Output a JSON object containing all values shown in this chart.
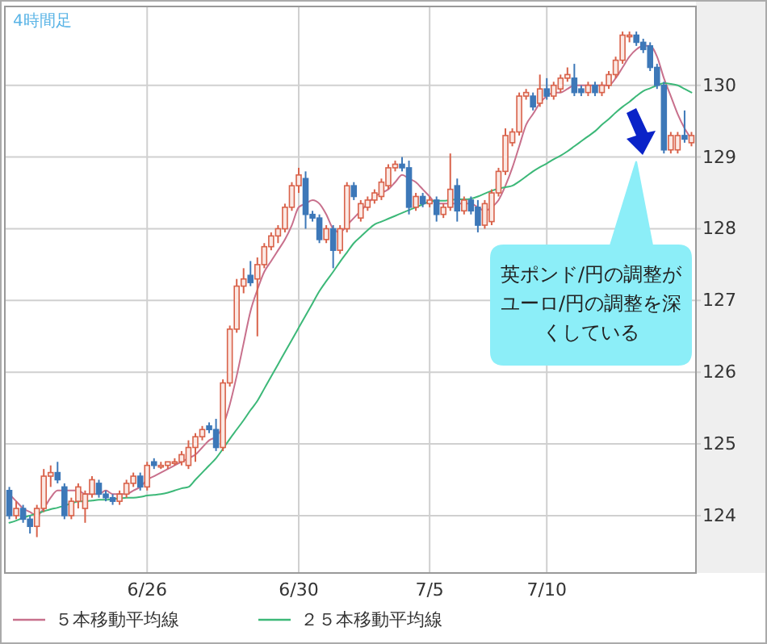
{
  "chart_data": {
    "type": "candlestick",
    "annotations": [
      "4時間足",
      "英ポンド/円の調整がユーロ/円の調整を深くしている"
    ],
    "categories": [
      null,
      null,
      null,
      null,
      null,
      null,
      null,
      null,
      null,
      null,
      null,
      null,
      null,
      null,
      null,
      null,
      null,
      null,
      null,
      null,
      "6/26",
      null,
      null,
      null,
      null,
      null,
      null,
      null,
      null,
      null,
      null,
      null,
      null,
      null,
      null,
      null,
      null,
      null,
      null,
      null,
      null,
      null,
      "6/30",
      null,
      null,
      null,
      null,
      null,
      null,
      null,
      null,
      null,
      null,
      null,
      null,
      null,
      null,
      null,
      null,
      null,
      null,
      "7/5",
      null,
      null,
      null,
      null,
      null,
      null,
      null,
      null,
      null,
      null,
      null,
      null,
      null,
      null,
      null,
      null,
      "7/10",
      null,
      null,
      null,
      null,
      null,
      null,
      null,
      null,
      null,
      null,
      null,
      null,
      null,
      null,
      null,
      null,
      null,
      null,
      null,
      null,
      null
    ],
    "ohlc": [
      [
        124.35,
        124.4,
        123.95,
        124.0
      ],
      [
        124.0,
        124.2,
        123.95,
        124.1
      ],
      [
        124.1,
        124.15,
        123.9,
        123.95
      ],
      [
        123.95,
        124.0,
        123.75,
        123.85
      ],
      [
        123.85,
        124.15,
        123.7,
        124.1
      ],
      [
        124.1,
        124.65,
        124.05,
        124.55
      ],
      [
        124.55,
        124.7,
        124.4,
        124.6
      ],
      [
        124.6,
        124.75,
        124.45,
        124.5
      ],
      [
        124.4,
        124.45,
        123.95,
        124.0
      ],
      [
        124.0,
        124.25,
        123.95,
        124.2
      ],
      [
        124.2,
        124.45,
        124.1,
        124.4
      ],
      [
        124.1,
        124.35,
        123.9,
        124.3
      ],
      [
        124.3,
        124.55,
        124.25,
        124.5
      ],
      [
        124.45,
        124.5,
        124.25,
        124.3
      ],
      [
        124.3,
        124.35,
        124.2,
        124.25
      ],
      [
        124.25,
        124.3,
        124.15,
        124.2
      ],
      [
        124.2,
        124.35,
        124.15,
        124.3
      ],
      [
        124.3,
        124.5,
        124.25,
        124.45
      ],
      [
        124.45,
        124.6,
        124.4,
        124.55
      ],
      [
        124.55,
        124.6,
        124.35,
        124.4
      ],
      [
        124.4,
        124.75,
        124.35,
        124.7
      ],
      [
        124.75,
        124.8,
        124.65,
        124.7
      ],
      [
        124.7,
        124.75,
        124.65,
        124.7
      ],
      [
        124.7,
        124.75,
        124.65,
        124.75
      ],
      [
        124.75,
        124.8,
        124.7,
        124.75
      ],
      [
        124.75,
        124.9,
        124.7,
        124.85
      ],
      [
        124.7,
        125.05,
        124.65,
        124.95
      ],
      [
        124.95,
        125.15,
        124.75,
        125.1
      ],
      [
        125.1,
        125.25,
        125.05,
        125.2
      ],
      [
        125.25,
        125.3,
        125.15,
        125.2
      ],
      [
        125.2,
        125.35,
        124.9,
        124.95
      ],
      [
        124.95,
        125.9,
        124.9,
        125.85
      ],
      [
        125.85,
        126.65,
        125.8,
        126.6
      ],
      [
        126.6,
        127.3,
        126.55,
        127.2
      ],
      [
        127.2,
        127.45,
        127.1,
        127.3
      ],
      [
        127.35,
        127.55,
        127.2,
        127.25
      ],
      [
        127.3,
        127.6,
        126.5,
        127.5
      ],
      [
        127.5,
        127.8,
        127.45,
        127.75
      ],
      [
        127.75,
        127.95,
        127.7,
        127.9
      ],
      [
        127.9,
        128.05,
        127.8,
        128.0
      ],
      [
        128.0,
        128.35,
        127.95,
        128.3
      ],
      [
        128.3,
        128.65,
        128.25,
        128.6
      ],
      [
        128.6,
        128.85,
        128.5,
        128.75
      ],
      [
        128.7,
        128.8,
        128.0,
        128.2
      ],
      [
        128.2,
        128.25,
        128.1,
        128.15
      ],
      [
        128.15,
        128.2,
        127.8,
        127.85
      ],
      [
        127.85,
        128.05,
        127.8,
        128.0
      ],
      [
        128.0,
        128.05,
        127.45,
        127.7
      ],
      [
        127.7,
        128.05,
        127.65,
        128.0
      ],
      [
        128.0,
        128.65,
        127.95,
        128.6
      ],
      [
        128.6,
        128.65,
        128.4,
        128.45
      ],
      [
        128.15,
        128.4,
        128.1,
        128.35
      ],
      [
        128.3,
        128.45,
        128.25,
        128.4
      ],
      [
        128.4,
        128.55,
        128.35,
        128.5
      ],
      [
        128.45,
        128.7,
        128.4,
        128.65
      ],
      [
        128.6,
        128.9,
        128.55,
        128.85
      ],
      [
        128.85,
        128.95,
        128.8,
        128.9
      ],
      [
        128.9,
        129.0,
        128.8,
        128.85
      ],
      [
        128.85,
        128.95,
        128.2,
        128.3
      ],
      [
        128.3,
        128.5,
        128.25,
        128.45
      ],
      [
        128.45,
        128.5,
        128.3,
        128.35
      ],
      [
        128.35,
        128.45,
        128.3,
        128.4
      ],
      [
        128.4,
        128.45,
        128.1,
        128.2
      ],
      [
        128.2,
        128.35,
        128.15,
        128.3
      ],
      [
        128.3,
        129.05,
        128.25,
        128.55
      ],
      [
        128.6,
        128.7,
        128.1,
        128.25
      ],
      [
        128.25,
        128.45,
        128.2,
        128.4
      ],
      [
        128.4,
        128.45,
        128.2,
        128.25
      ],
      [
        128.3,
        128.4,
        127.95,
        128.05
      ],
      [
        128.05,
        128.4,
        128.0,
        128.35
      ],
      [
        128.1,
        128.55,
        128.05,
        128.5
      ],
      [
        128.5,
        128.85,
        128.45,
        128.8
      ],
      [
        128.8,
        129.4,
        128.75,
        129.3
      ],
      [
        129.2,
        129.4,
        129.15,
        129.35
      ],
      [
        129.35,
        129.9,
        129.3,
        129.85
      ],
      [
        129.85,
        129.95,
        129.8,
        129.9
      ],
      [
        129.85,
        129.9,
        129.65,
        129.7
      ],
      [
        129.75,
        130.15,
        129.7,
        129.95
      ],
      [
        129.95,
        130.1,
        129.8,
        129.85
      ],
      [
        129.85,
        130.05,
        129.8,
        130.0
      ],
      [
        129.95,
        130.15,
        129.9,
        130.1
      ],
      [
        130.1,
        130.25,
        130.05,
        130.15
      ],
      [
        130.1,
        130.3,
        129.85,
        129.9
      ],
      [
        129.95,
        130.0,
        129.85,
        129.9
      ],
      [
        129.9,
        130.05,
        129.85,
        130.0
      ],
      [
        130.0,
        130.05,
        129.85,
        129.9
      ],
      [
        129.9,
        130.05,
        129.85,
        130.0
      ],
      [
        130.0,
        130.2,
        129.95,
        130.15
      ],
      [
        130.15,
        130.4,
        130.1,
        130.35
      ],
      [
        130.35,
        130.75,
        130.3,
        130.7
      ],
      [
        130.7,
        130.75,
        130.6,
        130.7
      ],
      [
        130.7,
        130.75,
        130.55,
        130.6
      ],
      [
        130.6,
        130.65,
        130.45,
        130.5
      ],
      [
        130.55,
        130.6,
        130.2,
        130.25
      ],
      [
        130.25,
        130.3,
        129.95,
        130.0
      ],
      [
        130.0,
        130.05,
        129.05,
        129.1
      ],
      [
        129.1,
        129.35,
        129.05,
        129.3
      ],
      [
        129.1,
        129.35,
        129.05,
        129.3
      ],
      [
        129.3,
        129.65,
        129.2,
        129.25
      ],
      [
        129.2,
        129.35,
        129.15,
        129.3
      ]
    ],
    "series": [
      {
        "name": "５本移動平均線",
        "type": "line",
        "color": "#c8708c",
        "values": [
          124.3,
          124.2,
          124.1,
          124.05,
          124.0,
          124.1,
          124.25,
          124.35,
          124.35,
          124.35,
          124.35,
          124.3,
          124.3,
          124.3,
          124.35,
          124.3,
          124.3,
          124.3,
          124.35,
          124.4,
          124.5,
          124.55,
          124.6,
          124.65,
          124.7,
          124.75,
          124.8,
          124.85,
          124.95,
          125.05,
          125.1,
          125.25,
          125.55,
          125.95,
          126.4,
          126.85,
          127.15,
          127.4,
          127.55,
          127.7,
          127.85,
          128.05,
          128.3,
          128.35,
          128.4,
          128.35,
          128.2,
          128.0,
          127.95,
          128.05,
          128.15,
          128.25,
          128.35,
          128.45,
          128.5,
          128.55,
          128.65,
          128.75,
          128.7,
          128.65,
          128.55,
          128.45,
          128.35,
          128.35,
          128.35,
          128.35,
          128.35,
          128.35,
          128.3,
          128.25,
          128.3,
          128.4,
          128.6,
          128.85,
          129.15,
          129.45,
          129.6,
          129.75,
          129.85,
          129.9,
          129.9,
          129.95,
          130.0,
          130.0,
          130.0,
          130.0,
          130.0,
          130.0,
          130.1,
          130.25,
          130.4,
          130.5,
          130.55,
          130.55,
          130.4,
          130.1,
          129.85,
          129.6,
          129.4,
          129.25
        ]
      },
      {
        "name": "２５本移動平均線",
        "type": "line",
        "color": "#3cb878",
        "values": [
          123.9,
          123.93,
          123.97,
          124.0,
          124.03,
          124.06,
          124.09,
          124.11,
          124.14,
          124.17,
          124.2,
          124.2,
          124.21,
          124.22,
          124.22,
          124.23,
          124.24,
          124.25,
          124.25,
          124.26,
          124.28,
          124.29,
          124.3,
          124.32,
          124.35,
          124.38,
          124.4,
          124.5,
          124.6,
          124.7,
          124.8,
          124.93,
          125.07,
          125.2,
          125.33,
          125.47,
          125.6,
          125.77,
          125.94,
          126.11,
          126.28,
          126.45,
          126.62,
          126.79,
          126.96,
          127.13,
          127.27,
          127.4,
          127.54,
          127.67,
          127.8,
          127.89,
          127.98,
          128.06,
          128.1,
          128.14,
          128.18,
          128.22,
          128.26,
          128.3,
          128.34,
          128.38,
          128.39,
          128.39,
          128.4,
          128.41,
          128.41,
          128.42,
          128.45,
          128.49,
          128.53,
          128.56,
          128.58,
          128.6,
          128.66,
          128.73,
          128.8,
          128.86,
          128.91,
          128.97,
          129.02,
          129.08,
          129.15,
          129.22,
          129.29,
          129.36,
          129.45,
          129.53,
          129.62,
          129.7,
          129.77,
          129.85,
          129.92,
          129.96,
          130.0,
          130.03,
          130.02,
          130.0,
          129.95,
          129.9
        ]
      }
    ],
    "ylim": [
      123.2,
      131.1
    ],
    "yticks": [
      124,
      125,
      126,
      127,
      128,
      129,
      130
    ],
    "grid": true,
    "legend": "bottom"
  }
}
